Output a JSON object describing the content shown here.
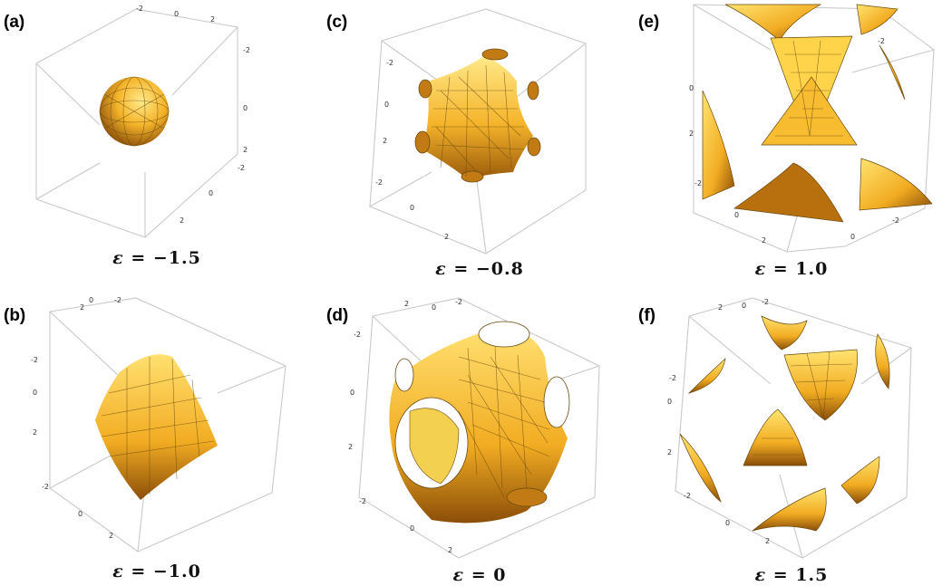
{
  "panels": [
    {
      "id": "a",
      "label": "(a)",
      "epsilon": "−1.5",
      "shape": "sphere"
    },
    {
      "id": "b",
      "label": "(b)",
      "epsilon": "−1.0",
      "shape": "rounded-cube"
    },
    {
      "id": "c",
      "label": "(c)",
      "epsilon": "−0.8",
      "shape": "necked-cube"
    },
    {
      "id": "d",
      "label": "(d)",
      "epsilon": "0",
      "shape": "schwarz-surface"
    },
    {
      "id": "e",
      "label": "(e)",
      "epsilon": "1.0",
      "shape": "octahedral-cavities"
    },
    {
      "id": "f",
      "label": "(f)",
      "epsilon": "1.5",
      "shape": "separated-patches"
    }
  ],
  "epsilon_symbol": "ε",
  "equals": " = ",
  "ticks": [
    "-2",
    "0",
    "2"
  ],
  "colors": {
    "surface_light": "#ffe066",
    "surface_mid": "#f7b52c",
    "surface_dark": "#b06c0e",
    "edge": "#6a4a10",
    "box": "#c9c9c9"
  }
}
